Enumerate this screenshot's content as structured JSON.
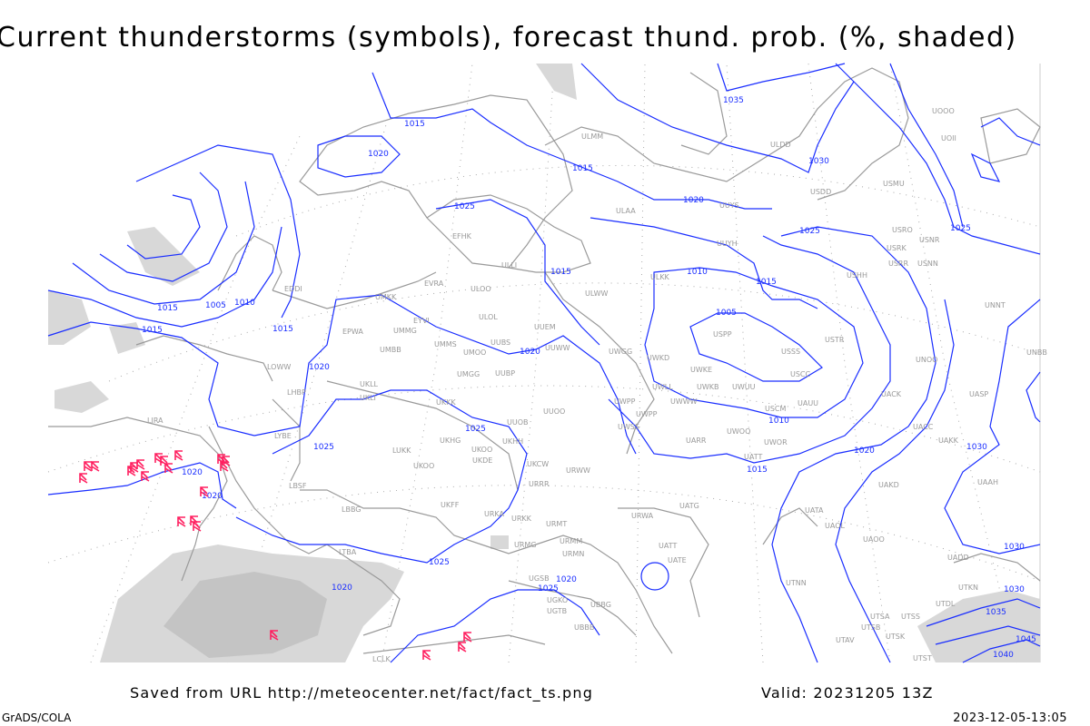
{
  "title": "Current thunderstorms (symbols), forecast thund. prob. (%, shaded)",
  "footer": {
    "saved_from": "Saved from URL http://meteocenter.net/fact/fact_ts.png",
    "valid": "Valid: 20231205 13Z",
    "software": "GrADS/COLA",
    "timestamp": "2023-12-05-13:05"
  },
  "colors": {
    "isobars": "#1a2eff",
    "coastlines": "#9a9a9a",
    "thunderstorm_symbols": "#ff2060",
    "probability_shading": "#d0d0d0"
  },
  "legend_symbol": "thunderstorm-icon",
  "isobar_labels": [
    "1015",
    "1020",
    "1015",
    "1035",
    "1030",
    "1020",
    "1025",
    "1015",
    "1015",
    "1010",
    "1005",
    "1015",
    "1020",
    "1025",
    "1020",
    "1015",
    "1025",
    "1020",
    "1020",
    "1025",
    "1020",
    "1025",
    "1010",
    "1015",
    "1005",
    "1030",
    "1020",
    "1015",
    "1025",
    "1025",
    "1030",
    "1030",
    "1035",
    "1045",
    "1040",
    "1020",
    "1010"
  ],
  "stations": [
    "LIRA",
    "EDDI",
    "UMKK",
    "EVRA",
    "ULOO",
    "ULOL",
    "EYVI",
    "UMMG",
    "EPWA",
    "UMBB",
    "UMMS",
    "UMOO",
    "UUBS",
    "UUEM",
    "UUWW",
    "UWGG",
    "UMGG",
    "UUBP",
    "UKLL",
    "UKLI",
    "LHBP",
    "LOWW",
    "LYBE",
    "UKKK",
    "UUOO",
    "UUOB",
    "UKHH",
    "UKOO",
    "UKHG",
    "LUKK",
    "UKOO",
    "UKDE",
    "UKCW",
    "URRR",
    "LBSF",
    "LBBG",
    "UKFF",
    "URKA",
    "URKK",
    "URMT",
    "URMM",
    "URMN",
    "URMG",
    "UGSB",
    "UGKO",
    "UGTB",
    "UBBB",
    "UBBG",
    "URWW",
    "URWA",
    "UATG",
    "UATT",
    "UATE",
    "UARR",
    "UWPP",
    "UWSS",
    "LTBA",
    "LCLK",
    "ULKK",
    "ULWW",
    "ULAA",
    "ULMM",
    "EFHK",
    "ULLI",
    "UUYH",
    "UUYS",
    "ULDD",
    "USDD",
    "USPP",
    "USSS",
    "USCC",
    "USTR",
    "USHH",
    "USRR",
    "USRK",
    "USNR",
    "USNN",
    "USRO",
    "USMU",
    "UOOO",
    "UOII",
    "UNNT",
    "UNBB",
    "USCM",
    "UAUU",
    "UWOO",
    "UWOR",
    "UATT",
    "UACC",
    "UAKK",
    "UAKD",
    "UASP",
    "UACK",
    "UNOO",
    "UAAH",
    "UATA",
    "UAOL",
    "UAOO",
    "UADD",
    "UTNN",
    "UTSA",
    "UTSB",
    "UTSS",
    "UTAV",
    "UTSK",
    "UTST",
    "UTKN",
    "UTDL",
    "UWKE",
    "UWKD",
    "UWLL",
    "UWWW",
    "UWKB",
    "UWUU",
    "UWPP"
  ]
}
